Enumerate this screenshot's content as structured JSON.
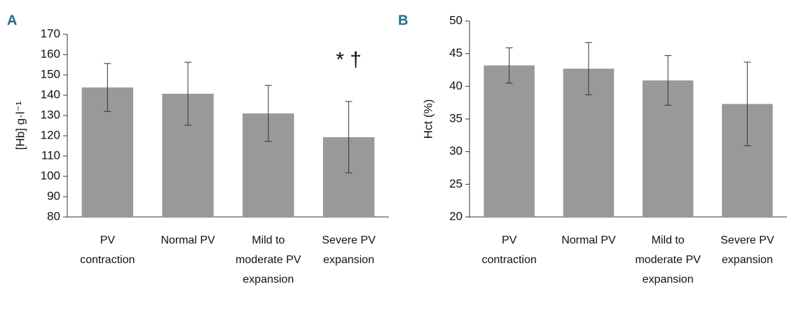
{
  "chart_data": [
    {
      "type": "bar",
      "panel": "A",
      "y_label": "[Hb] g·l⁻¹",
      "categories": [
        "PV contraction",
        "Normal PV",
        "Mild to moderate PV expansion",
        "Severe PV expansion"
      ],
      "values": [
        143.8,
        140.7,
        131,
        119.3
      ],
      "errors": [
        11.8,
        15.5,
        13.8,
        17.6
      ],
      "color": "#999999",
      "ylim": [
        80,
        170
      ],
      "yticks": [
        80,
        90,
        100,
        110,
        120,
        130,
        140,
        150,
        160,
        170
      ],
      "annotation": "* †"
    },
    {
      "type": "bar",
      "panel": "B",
      "y_label": "Hct (%)",
      "categories": [
        "PV contraction",
        "Normal PV",
        "Mild to moderate PV expansion",
        "Severe PV expansion"
      ],
      "values": [
        43.2,
        42.7,
        40.9,
        37.3
      ],
      "errors": [
        2.7,
        4.0,
        3.8,
        6.4
      ],
      "color": "#999999",
      "ylim": [
        20,
        50
      ],
      "yticks": [
        20,
        25,
        30,
        35,
        40,
        45,
        50
      ]
    }
  ]
}
